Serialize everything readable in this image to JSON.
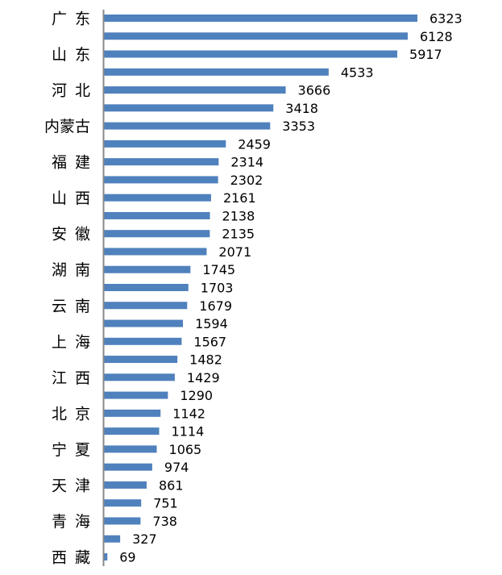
{
  "chart_data": {
    "type": "bar",
    "orientation": "horizontal",
    "title": "",
    "xlabel": "",
    "ylabel": "",
    "xlim": [
      0,
      6323
    ],
    "grid": false,
    "legend": "none",
    "bar_color": "#4f81bd",
    "axis_color": "#898989",
    "category_labels": [
      "广东",
      "",
      "山东",
      "",
      "河北",
      "",
      "内蒙古",
      "",
      "福建",
      "",
      "山西",
      "",
      "安徽",
      "",
      "湖南",
      "",
      "云南",
      "",
      "上海",
      "",
      "江西",
      "",
      "北京",
      "",
      "宁夏",
      "",
      "天津",
      "",
      "青海",
      "",
      "西藏"
    ],
    "values": [
      6323,
      6128,
      5917,
      4533,
      3666,
      3418,
      3353,
      2459,
      2314,
      2302,
      2161,
      2138,
      2135,
      2071,
      1745,
      1703,
      1679,
      1594,
      1567,
      1482,
      1429,
      1290,
      1142,
      1114,
      1065,
      974,
      861,
      751,
      738,
      327,
      69
    ],
    "data_labels": [
      "6323",
      "6128",
      "5917",
      "4533",
      "3666",
      "3418",
      "3353",
      "2459",
      "2314",
      "2302",
      "2161",
      "2138",
      "2135",
      "2071",
      "1745",
      "1703",
      "1679",
      "1594",
      "1567",
      "1482",
      "1429",
      "1290",
      "1142",
      "1114",
      "1065",
      "974",
      "861",
      "751",
      "738",
      "327",
      "69"
    ]
  }
}
